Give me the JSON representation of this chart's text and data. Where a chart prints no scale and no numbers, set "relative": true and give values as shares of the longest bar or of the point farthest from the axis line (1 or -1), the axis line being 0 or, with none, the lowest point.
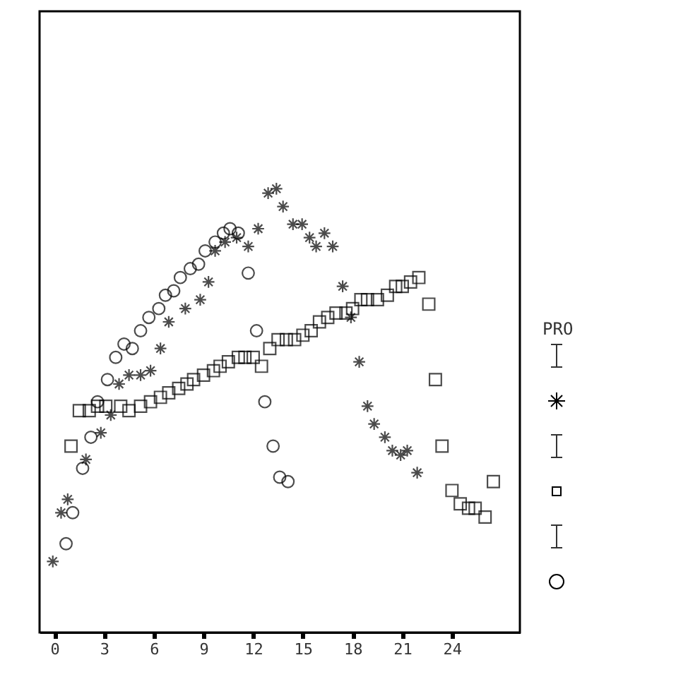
{
  "chart_data": {
    "type": "scatter",
    "relative": true,
    "legend_title": "PRO",
    "grid": false,
    "xlim": [
      -0.9,
      28.1
    ],
    "xticks": [
      0,
      3,
      6,
      9,
      12,
      15,
      18,
      21,
      24
    ],
    "series": [
      {
        "color": "#000000",
        "marker": "cross",
        "x": [
          -0.1,
          0.4,
          0.8,
          1.9,
          2.8,
          3.4,
          3.9,
          4.5,
          5.2,
          5.8,
          6.4,
          6.9,
          7.9,
          8.8,
          9.3,
          9.7,
          10.3,
          11.0,
          11.7,
          12.3,
          12.9,
          13.4,
          13.8,
          14.4,
          14.95,
          15.4,
          15.8,
          16.3,
          16.8,
          17.4,
          17.9,
          18.4,
          18.9,
          19.3,
          19.95,
          20.4,
          20.9,
          21.3,
          21.9
        ],
        "values": [
          0.16,
          0.27,
          0.3,
          0.39,
          0.45,
          0.49,
          0.56,
          0.58,
          0.58,
          0.59,
          0.64,
          0.7,
          0.73,
          0.75,
          0.79,
          0.86,
          0.88,
          0.89,
          0.87,
          0.91,
          0.99,
          1.0,
          0.96,
          0.92,
          0.92,
          0.89,
          0.87,
          0.9,
          0.87,
          0.78,
          0.71,
          0.61,
          0.51,
          0.47,
          0.44,
          0.41,
          0.4,
          0.41,
          0.36
        ]
      },
      {
        "color": "#000000",
        "marker": "square",
        "x": [
          1.0,
          1.5,
          2.1,
          2.6,
          3.1,
          4.0,
          4.5,
          5.2,
          5.8,
          6.4,
          6.9,
          7.5,
          8.0,
          8.4,
          9.0,
          9.6,
          10.0,
          10.5,
          11.1,
          11.5,
          12.0,
          12.5,
          13.0,
          13.5,
          14.0,
          14.5,
          15.0,
          15.5,
          16.0,
          16.5,
          17.0,
          17.6,
          18.0,
          18.5,
          18.9,
          19.5,
          20.1,
          20.6,
          21.0,
          21.5,
          22.0,
          22.6,
          23.0,
          23.4,
          24.0,
          24.5,
          25.0,
          25.4,
          26.0,
          26.5
        ],
        "values": [
          0.42,
          0.5,
          0.5,
          0.51,
          0.51,
          0.51,
          0.5,
          0.51,
          0.52,
          0.53,
          0.54,
          0.55,
          0.56,
          0.57,
          0.58,
          0.59,
          0.6,
          0.61,
          0.62,
          0.62,
          0.62,
          0.6,
          0.64,
          0.66,
          0.66,
          0.66,
          0.67,
          0.68,
          0.7,
          0.71,
          0.72,
          0.72,
          0.73,
          0.75,
          0.75,
          0.75,
          0.76,
          0.78,
          0.78,
          0.79,
          0.8,
          0.74,
          0.57,
          0.42,
          0.32,
          0.29,
          0.28,
          0.28,
          0.26,
          0.34
        ]
      },
      {
        "color": "#000000",
        "marker": "circle",
        "x": [
          0.7,
          1.1,
          1.7,
          2.2,
          2.6,
          3.2,
          3.7,
          4.2,
          4.7,
          5.2,
          5.7,
          6.3,
          6.7,
          7.2,
          7.6,
          8.2,
          8.7,
          9.1,
          9.7,
          10.2,
          10.6,
          11.1,
          11.7,
          12.2,
          12.7,
          13.2,
          13.6,
          14.1
        ],
        "values": [
          0.2,
          0.27,
          0.37,
          0.44,
          0.52,
          0.57,
          0.62,
          0.65,
          0.64,
          0.68,
          0.71,
          0.73,
          0.76,
          0.77,
          0.8,
          0.82,
          0.83,
          0.86,
          0.88,
          0.9,
          0.91,
          0.9,
          0.81,
          0.68,
          0.52,
          0.42,
          0.35,
          0.34
        ]
      }
    ]
  }
}
